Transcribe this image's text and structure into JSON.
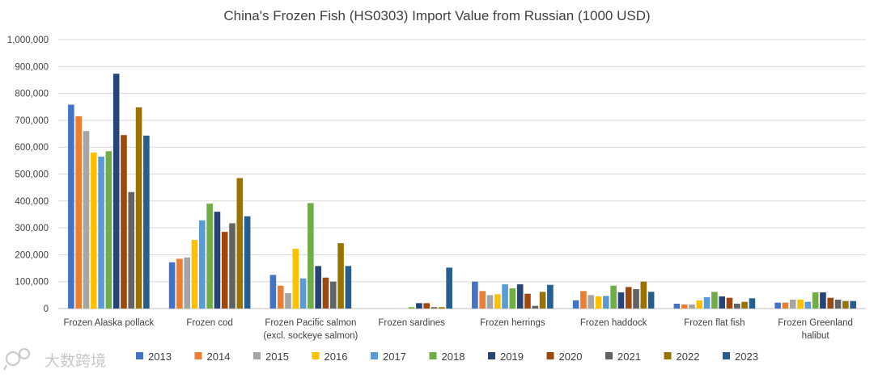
{
  "chart_data": {
    "type": "bar",
    "title": "China's Frozen Fish (HS0303) Import Value from Russian (1000 USD)",
    "xlabel": "",
    "ylabel": "",
    "ylim": [
      0,
      1000000
    ],
    "yticks": [
      "0",
      "100,000",
      "200,000",
      "300,000",
      "400,000",
      "500,000",
      "600,000",
      "700,000",
      "800,000",
      "900,000",
      "1,000,000"
    ],
    "grid": true,
    "legend_position": "bottom",
    "categories": [
      [
        "Frozen Alaska pollack"
      ],
      [
        "Frozen cod"
      ],
      [
        "Frozen Pacific salmon",
        "(excl. sockeye salmon)"
      ],
      [
        "Frozen sardines"
      ],
      [
        "Frozen herrings"
      ],
      [
        "Frozen haddock"
      ],
      [
        "Frozen flat fish"
      ],
      [
        "Frozen Greenland",
        "halibut"
      ]
    ],
    "series": [
      {
        "name": "2013",
        "color": "#4472C4",
        "values": [
          758000,
          172000,
          125000,
          0,
          100000,
          30000,
          18000,
          22000
        ]
      },
      {
        "name": "2014",
        "color": "#ED7D31",
        "values": [
          715000,
          185000,
          85000,
          0,
          65000,
          65000,
          15000,
          22000
        ]
      },
      {
        "name": "2015",
        "color": "#A5A5A5",
        "values": [
          660000,
          190000,
          57000,
          0,
          50000,
          50000,
          15000,
          33000
        ]
      },
      {
        "name": "2016",
        "color": "#FFC000",
        "values": [
          580000,
          255000,
          222000,
          0,
          53000,
          45000,
          30000,
          33000
        ]
      },
      {
        "name": "2017",
        "color": "#5B9BD5",
        "values": [
          565000,
          328000,
          112000,
          0,
          90000,
          47000,
          42000,
          25000
        ]
      },
      {
        "name": "2018",
        "color": "#70AD47",
        "values": [
          585000,
          390000,
          392000,
          5000,
          75000,
          85000,
          62000,
          60000
        ]
      },
      {
        "name": "2019",
        "color": "#264478",
        "values": [
          873000,
          360000,
          158000,
          20000,
          90000,
          60000,
          45000,
          60000
        ]
      },
      {
        "name": "2020",
        "color": "#9E480E",
        "values": [
          645000,
          285000,
          115000,
          20000,
          55000,
          80000,
          40000,
          40000
        ]
      },
      {
        "name": "2021",
        "color": "#636363",
        "values": [
          433000,
          317000,
          100000,
          5000,
          10000,
          72000,
          18000,
          33000
        ]
      },
      {
        "name": "2022",
        "color": "#997300",
        "values": [
          748000,
          485000,
          243000,
          5000,
          62000,
          100000,
          25000,
          28000
        ]
      },
      {
        "name": "2023",
        "color": "#255E91",
        "values": [
          643000,
          343000,
          158000,
          152000,
          88000,
          62000,
          38000,
          28000
        ]
      }
    ]
  },
  "watermark": {
    "icon": "logo-icon",
    "text": "大数跨境"
  }
}
